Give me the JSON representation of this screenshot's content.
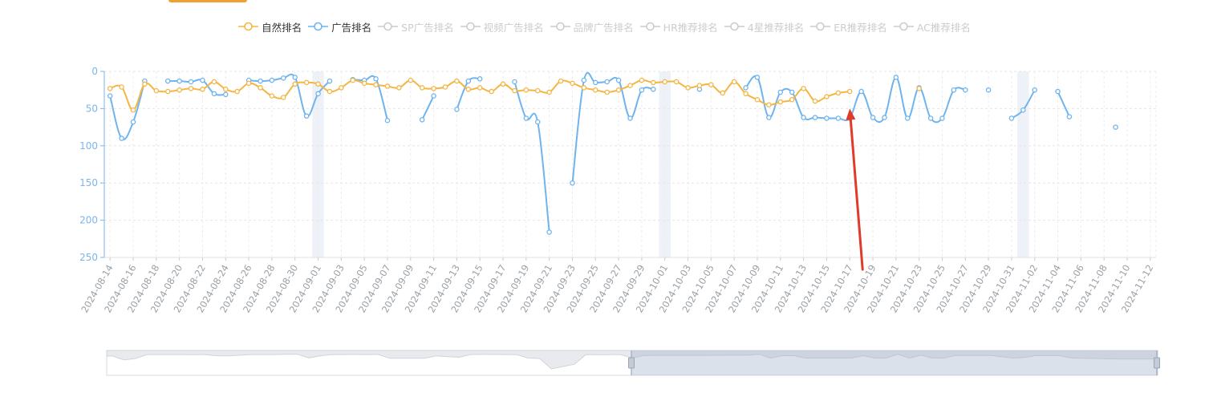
{
  "colors": {
    "natural": "#f5b542",
    "ad": "#6fb4ee",
    "inactive": "#cccccc",
    "axis": "#7bb6ea",
    "arrow": "#e03a2a",
    "legend_active_text": "#333333",
    "legend_inactive_text": "#cccccc"
  },
  "chart_data": {
    "type": "line",
    "legend": [
      {
        "name": "自然排名",
        "active": true,
        "color": "#f5b542"
      },
      {
        "name": "广告排名",
        "active": true,
        "color": "#6fb4ee"
      },
      {
        "name": "SP广告排名",
        "active": false
      },
      {
        "name": "视频广告排名",
        "active": false
      },
      {
        "name": "品牌广告排名",
        "active": false
      },
      {
        "name": "HR推荐排名",
        "active": false
      },
      {
        "name": "4星推荐排名",
        "active": false
      },
      {
        "name": "ER推荐排名",
        "active": false
      },
      {
        "name": "AC推荐排名",
        "active": false
      }
    ],
    "y_axis": {
      "inverse": true,
      "min": 0,
      "max": 250,
      "ticks": [
        0,
        50,
        100,
        150,
        200,
        250
      ]
    },
    "x_start": "2024-08-14",
    "x_labels": [
      "2024-08-14",
      "2024-08-16",
      "2024-08-18",
      "2024-08-20",
      "2024-08-22",
      "2024-08-24",
      "2024-08-26",
      "2024-08-28",
      "2024-08-30",
      "2024-09-01",
      "2024-09-03",
      "2024-09-05",
      "2024-09-07",
      "2024-09-09",
      "2024-09-11",
      "2024-09-13",
      "2024-09-15",
      "2024-09-17",
      "2024-09-19",
      "2024-09-21",
      "2024-09-23",
      "2024-09-25",
      "2024-09-27",
      "2024-09-29",
      "2024-10-01",
      "2024-10-03",
      "2024-10-05",
      "2024-10-07",
      "2024-10-09",
      "2024-10-11",
      "2024-10-13",
      "2024-10-15",
      "2024-10-17",
      "2024-10-19",
      "2024-10-21",
      "2024-10-23",
      "2024-10-25",
      "2024-10-27",
      "2024-10-29",
      "2024-10-31",
      "2024-11-02",
      "2024-11-04",
      "2024-11-06",
      "2024-11-08",
      "2024-11-10",
      "2024-11-12"
    ],
    "weekend_bands": [
      "2024-09-01",
      "2024-10-01",
      "2024-11-01"
    ],
    "series": [
      {
        "name": "自然排名",
        "points": [
          [
            "2024-08-14",
            23
          ],
          [
            "2024-08-15",
            21
          ],
          [
            "2024-08-16",
            52
          ],
          [
            "2024-08-17",
            17
          ],
          [
            "2024-08-18",
            26
          ],
          [
            "2024-08-19",
            27
          ],
          [
            "2024-08-20",
            25
          ],
          [
            "2024-08-21",
            23
          ],
          [
            "2024-08-22",
            24
          ],
          [
            "2024-08-23",
            14
          ],
          [
            "2024-08-24",
            24
          ],
          [
            "2024-08-25",
            27
          ],
          [
            "2024-08-26",
            16
          ],
          [
            "2024-08-27",
            22
          ],
          [
            "2024-08-28",
            33
          ],
          [
            "2024-08-29",
            35
          ],
          [
            "2024-08-30",
            17
          ],
          [
            "2024-08-31",
            15
          ],
          [
            "2024-09-01",
            17
          ],
          [
            "2024-09-02",
            27
          ],
          [
            "2024-09-03",
            22
          ],
          [
            "2024-09-04",
            12
          ],
          [
            "2024-09-05",
            16
          ],
          [
            "2024-09-06",
            18
          ],
          [
            "2024-09-07",
            20
          ],
          [
            "2024-09-08",
            22
          ],
          [
            "2024-09-09",
            12
          ],
          [
            "2024-09-10",
            22
          ],
          [
            "2024-09-11",
            23
          ],
          [
            "2024-09-12",
            21
          ],
          [
            "2024-09-13",
            13
          ],
          [
            "2024-09-14",
            24
          ],
          [
            "2024-09-15",
            22
          ],
          [
            "2024-09-16",
            27
          ],
          [
            "2024-09-17",
            17
          ],
          [
            "2024-09-18",
            26
          ],
          [
            "2024-09-19",
            25
          ],
          [
            "2024-09-20",
            26
          ],
          [
            "2024-09-21",
            28
          ],
          [
            "2024-09-22",
            13
          ],
          [
            "2024-09-23",
            16
          ],
          [
            "2024-09-24",
            22
          ],
          [
            "2024-09-25",
            25
          ],
          [
            "2024-09-26",
            28
          ],
          [
            "2024-09-27",
            25
          ],
          [
            "2024-09-28",
            19
          ],
          [
            "2024-09-29",
            12
          ],
          [
            "2024-09-30",
            15
          ],
          [
            "2024-10-01",
            14
          ],
          [
            "2024-10-02",
            14
          ],
          [
            "2024-10-03",
            22
          ],
          [
            "2024-10-04",
            19
          ],
          [
            "2024-10-05",
            18
          ],
          [
            "2024-10-06",
            29
          ],
          [
            "2024-10-07",
            14
          ],
          [
            "2024-10-08",
            30
          ],
          [
            "2024-10-09",
            38
          ],
          [
            "2024-10-10",
            45
          ],
          [
            "2024-10-11",
            41
          ],
          [
            "2024-10-12",
            38
          ],
          [
            "2024-10-13",
            23
          ],
          [
            "2024-10-14",
            40
          ],
          [
            "2024-10-15",
            34
          ],
          [
            "2024-10-16",
            29
          ],
          [
            "2024-10-17",
            27
          ],
          [
            "2024-10-23",
            23
          ]
        ]
      },
      {
        "name": "广告排名",
        "segments": [
          [
            [
              "2024-08-14",
              33
            ],
            [
              "2024-08-15",
              90
            ],
            [
              "2024-08-16",
              68
            ],
            [
              "2024-08-17",
              13
            ]
          ],
          [
            [
              "2024-08-19",
              13
            ],
            [
              "2024-08-20",
              13
            ],
            [
              "2024-08-21",
              14
            ],
            [
              "2024-08-22",
              12
            ],
            [
              "2024-08-23",
              30
            ],
            [
              "2024-08-24",
              31
            ]
          ],
          [
            [
              "2024-08-26",
              12
            ],
            [
              "2024-08-27",
              13
            ],
            [
              "2024-08-28",
              12
            ],
            [
              "2024-08-29",
              9
            ],
            [
              "2024-08-30",
              8
            ],
            [
              "2024-08-31",
              60
            ],
            [
              "2024-09-01",
              30
            ],
            [
              "2024-09-02",
              13
            ]
          ],
          [
            [
              "2024-09-04",
              11
            ],
            [
              "2024-09-05",
              12
            ],
            [
              "2024-09-06",
              10
            ],
            [
              "2024-09-07",
              66
            ]
          ],
          [
            [
              "2024-09-10",
              65
            ],
            [
              "2024-09-11",
              33
            ]
          ],
          [
            [
              "2024-09-13",
              51
            ],
            [
              "2024-09-14",
              13
            ],
            [
              "2024-09-15",
              10
            ]
          ],
          [
            [
              "2024-09-18",
              14
            ],
            [
              "2024-09-19",
              63
            ],
            [
              "2024-09-20",
              68
            ],
            [
              "2024-09-21",
              216
            ]
          ],
          [
            [
              "2024-09-23",
              150
            ],
            [
              "2024-09-24",
              12
            ],
            [
              "2024-09-25",
              15
            ],
            [
              "2024-09-26",
              14
            ],
            [
              "2024-09-27",
              12
            ],
            [
              "2024-09-28",
              63
            ],
            [
              "2024-09-29",
              25
            ],
            [
              "2024-09-30",
              24
            ]
          ],
          [
            [
              "2024-10-04",
              24
            ]
          ],
          [
            [
              "2024-10-08",
              22
            ],
            [
              "2024-10-09",
              8
            ],
            [
              "2024-10-10",
              62
            ],
            [
              "2024-10-11",
              28
            ],
            [
              "2024-10-12",
              28
            ],
            [
              "2024-10-13",
              62
            ],
            [
              "2024-10-14",
              62
            ],
            [
              "2024-10-15",
              63
            ],
            [
              "2024-10-16",
              63
            ],
            [
              "2024-10-17",
              63
            ],
            [
              "2024-10-18",
              27
            ],
            [
              "2024-10-19",
              62
            ],
            [
              "2024-10-20",
              62
            ],
            [
              "2024-10-21",
              8
            ],
            [
              "2024-10-22",
              63
            ],
            [
              "2024-10-23",
              22
            ],
            [
              "2024-10-24",
              63
            ],
            [
              "2024-10-25",
              63
            ],
            [
              "2024-10-26",
              25
            ],
            [
              "2024-10-27",
              25
            ]
          ],
          [
            [
              "2024-10-29",
              25
            ]
          ],
          [
            [
              "2024-10-31",
              63
            ],
            [
              "2024-11-01",
              52
            ],
            [
              "2024-11-02",
              25
            ]
          ],
          [
            [
              "2024-11-04",
              27
            ],
            [
              "2024-11-05",
              61
            ]
          ],
          [
            [
              "2024-11-09",
              75
            ]
          ]
        ]
      }
    ],
    "annotation": {
      "type": "arrow",
      "points_to": [
        "2024-10-17",
        50
      ]
    }
  }
}
